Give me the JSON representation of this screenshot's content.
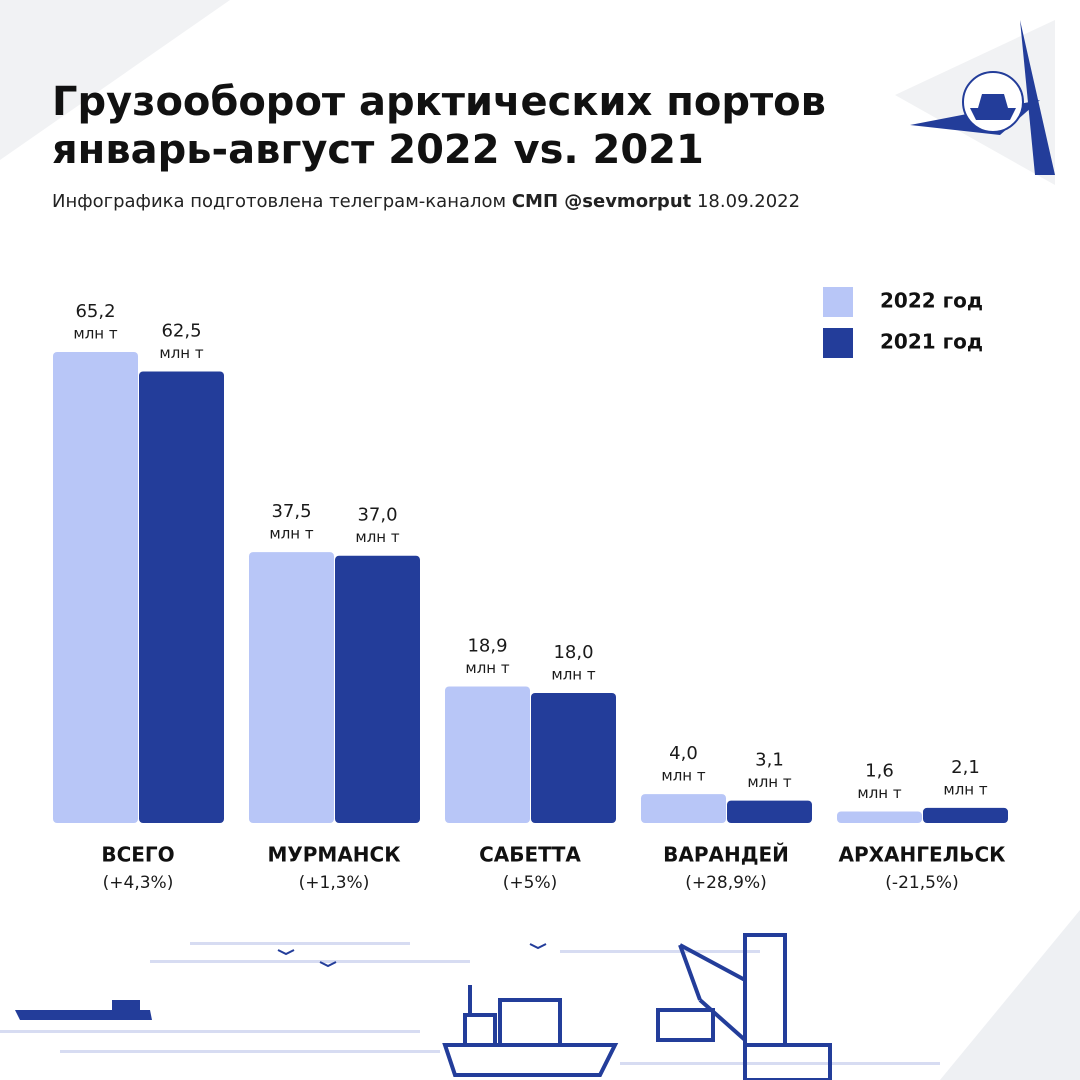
{
  "chart_data": {
    "type": "bar",
    "title": [
      "Грузооборот арктических портов",
      "январь-август 2022 vs. 2021"
    ],
    "subtitle": {
      "text": "Инфографика подготовлена телеграм-каналом",
      "source": "СМП @sevmorput",
      "date": "18.09.2022"
    },
    "unit": "млн т",
    "categories": [
      "ВСЕГО",
      "МУРМАНСК",
      "САБЕТТА",
      "ВАРАНДЕЙ",
      "АРХАНГЕЛЬСК"
    ],
    "changes": [
      "(+4,3%)",
      "(+1,3%)",
      "(+5%)",
      "(+28,9%)",
      "(-21,5%)"
    ],
    "series": [
      {
        "name": "2022 год",
        "color": "#b8c6f7",
        "values": [
          65.2,
          37.5,
          18.9,
          4.0,
          1.6
        ],
        "value_labels": [
          "65,2",
          "37,5",
          "18,9",
          "4,0",
          "1,6"
        ]
      },
      {
        "name": "2021 год",
        "color": "#233d9a",
        "values": [
          62.5,
          37.0,
          18.0,
          3.1,
          2.1
        ],
        "value_labels": [
          "62,5",
          "37,0",
          "18,0",
          "3,1",
          "2,1"
        ]
      }
    ],
    "legend": "top-right"
  }
}
